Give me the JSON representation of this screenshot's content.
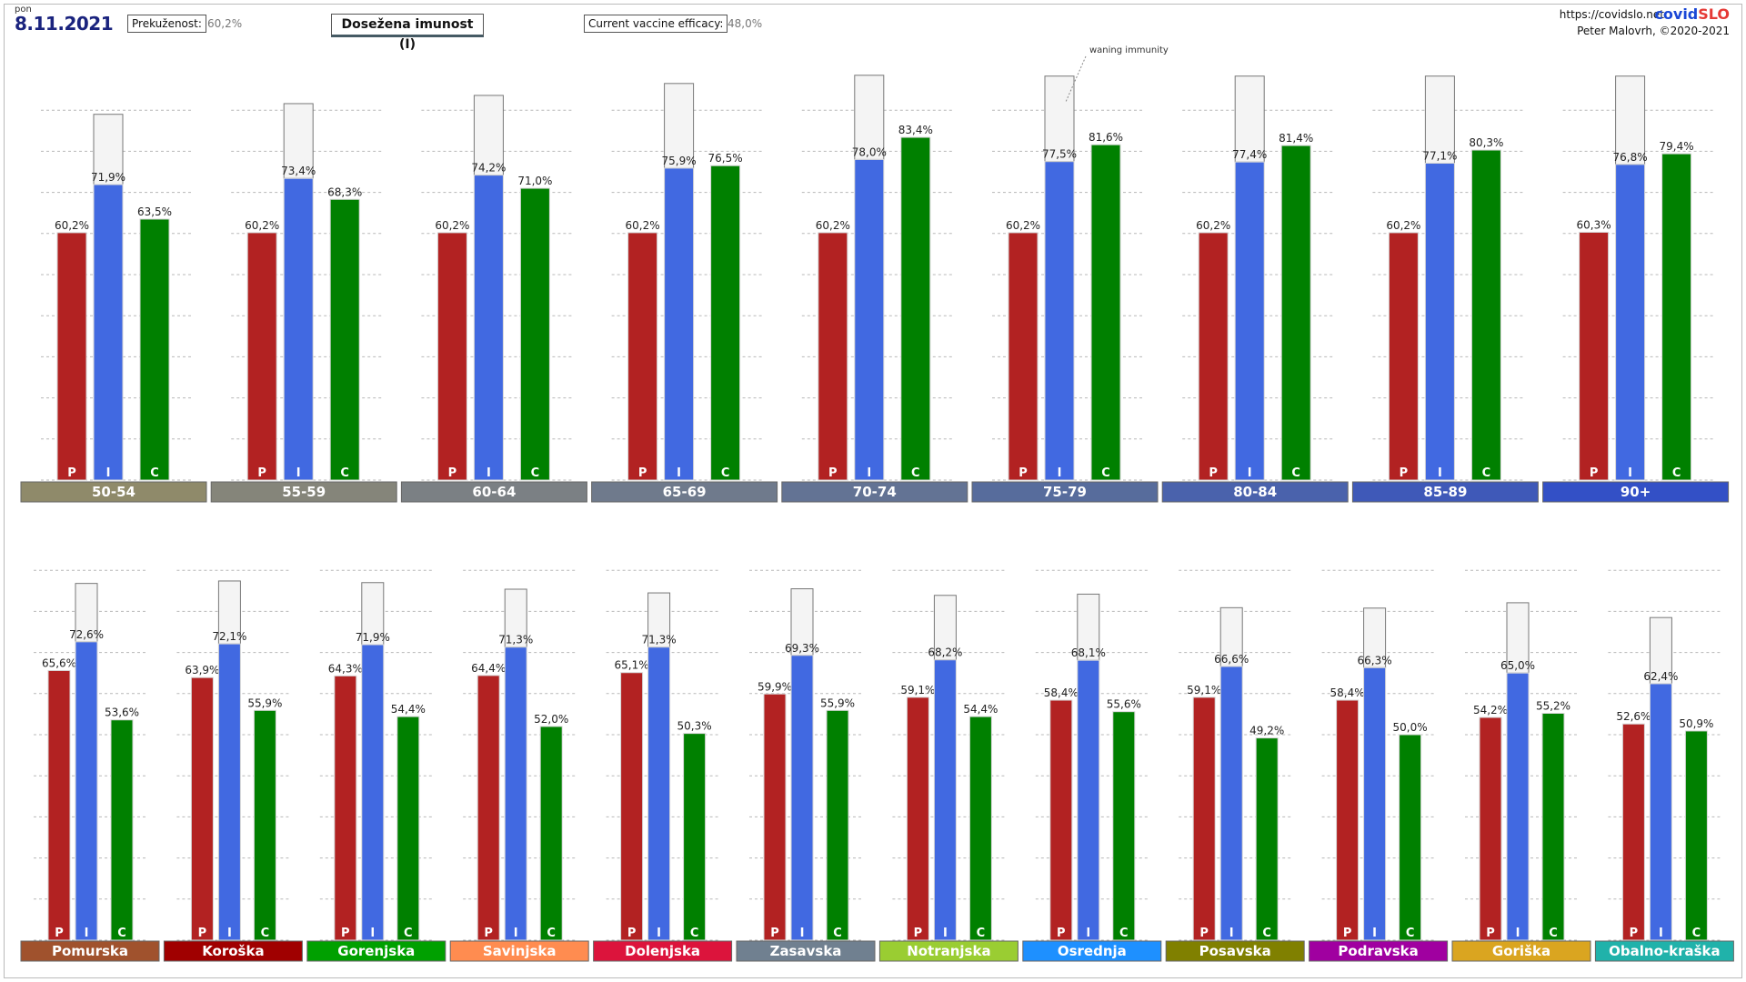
{
  "header": {
    "day": "pon",
    "date": "8.11.2021",
    "prekuzenost_label": "Prekuženost:",
    "prekuzenost_value": "60,2%",
    "title": "Dosežena imunost (I)",
    "efficacy_label": "Current vaccine efficacy:",
    "efficacy_value": "48,0%",
    "url": "https://covidslo.net",
    "brand_part1": "covid",
    "brand_part2": "SLO",
    "author": "Peter Malovrh, ©2020-2021"
  },
  "annotation": "waning immunity",
  "bar_letters": [
    "P",
    "I",
    "C"
  ],
  "colors": {
    "P": "#b22222",
    "I": "#4169e1",
    "C": "#008000",
    "waning": "#f4f4f4"
  },
  "chart_data": [
    {
      "type": "bar",
      "series": [
        {
          "name": "P",
          "values": [
            60.2,
            60.2,
            60.2,
            60.2,
            60.2,
            60.2,
            60.2,
            60.2,
            60.3
          ]
        },
        {
          "name": "I",
          "values": [
            71.9,
            73.4,
            74.2,
            75.9,
            78.0,
            77.5,
            77.4,
            77.1,
            76.8
          ]
        },
        {
          "name": "C",
          "values": [
            63.5,
            68.3,
            71.0,
            76.5,
            83.4,
            81.6,
            81.4,
            80.3,
            79.4
          ]
        }
      ],
      "waning_top": [
        89.0,
        91.6,
        93.6,
        96.5,
        98.5,
        98.3,
        98.3,
        98.3,
        98.3
      ],
      "labels": {
        "P": [
          "60,2%",
          "60,2%",
          "60,2%",
          "60,2%",
          "60,2%",
          "60,2%",
          "60,2%",
          "60,2%",
          "60,3%"
        ],
        "I": [
          "71,9%",
          "73,4%",
          "74,2%",
          "75,9%",
          "78,0%",
          "77,5%",
          "77,4%",
          "77,1%",
          "76,8%"
        ],
        "C": [
          "63,5%",
          "68,3%",
          "71,0%",
          "76,5%",
          "83,4%",
          "81,6%",
          "81,4%",
          "80,3%",
          "79,4%"
        ]
      },
      "groups": [
        {
          "name": "50-54",
          "color": "#8f8a6a"
        },
        {
          "name": "55-59",
          "color": "#85857a"
        },
        {
          "name": "60-64",
          "color": "#7b8084"
        },
        {
          "name": "65-69",
          "color": "#6f7a8c"
        },
        {
          "name": "70-74",
          "color": "#637394"
        },
        {
          "name": "75-79",
          "color": "#576c9c"
        },
        {
          "name": "80-84",
          "color": "#4a62ac"
        },
        {
          "name": "85-89",
          "color": "#3f59b8"
        },
        {
          "name": "90+",
          "color": "#3350c6"
        }
      ],
      "ylim": [
        0,
        100
      ],
      "grid": true
    },
    {
      "type": "bar",
      "series": [
        {
          "name": "P",
          "values": [
            65.6,
            63.9,
            64.3,
            64.4,
            65.1,
            59.9,
            59.1,
            58.4,
            59.1,
            58.4,
            54.2,
            52.6
          ]
        },
        {
          "name": "I",
          "values": [
            72.6,
            72.1,
            71.9,
            71.3,
            71.3,
            69.3,
            68.2,
            68.1,
            66.6,
            66.3,
            65.0,
            62.4
          ]
        },
        {
          "name": "C",
          "values": [
            53.6,
            55.9,
            54.4,
            52.0,
            50.3,
            55.9,
            54.4,
            55.6,
            49.2,
            50.0,
            55.2,
            50.9
          ]
        }
      ],
      "waning_top": [
        86.8,
        87.4,
        87.0,
        85.4,
        84.5,
        85.5,
        83.9,
        84.2,
        80.9,
        80.8,
        82.1,
        78.5
      ],
      "labels": {
        "P": [
          "65,6%",
          "63,9%",
          "64,3%",
          "64,4%",
          "65,1%",
          "59,9%",
          "59,1%",
          "58,4%",
          "59,1%",
          "58,4%",
          "54,2%",
          "52,6%"
        ],
        "I": [
          "72,6%",
          "72,1%",
          "71,9%",
          "71,3%",
          "71,3%",
          "69,3%",
          "68,2%",
          "68,1%",
          "66,6%",
          "66,3%",
          "65,0%",
          "62,4%"
        ],
        "C": [
          "53,6%",
          "55,9%",
          "54,4%",
          "52,0%",
          "50,3%",
          "55,9%",
          "54,4%",
          "55,6%",
          "49,2%",
          "50,0%",
          "55,2%",
          "50,9%"
        ]
      },
      "groups": [
        {
          "name": "Pomurska",
          "color": "#a0522d"
        },
        {
          "name": "Koroška",
          "color": "#a00000"
        },
        {
          "name": "Gorenjska",
          "color": "#00a000"
        },
        {
          "name": "Savinjska",
          "color": "#ff8c50"
        },
        {
          "name": "Dolenjska",
          "color": "#dc143c"
        },
        {
          "name": "Zasavska",
          "color": "#708090"
        },
        {
          "name": "Notranjska",
          "color": "#9acd32"
        },
        {
          "name": "Osrednja",
          "color": "#1e90ff"
        },
        {
          "name": "Posavska",
          "color": "#808000"
        },
        {
          "name": "Podravska",
          "color": "#a000a0"
        },
        {
          "name": "Goriška",
          "color": "#daa520"
        },
        {
          "name": "Obalno-kraška",
          "color": "#20b2aa"
        }
      ],
      "ylim": [
        0,
        100
      ],
      "grid": true
    }
  ]
}
